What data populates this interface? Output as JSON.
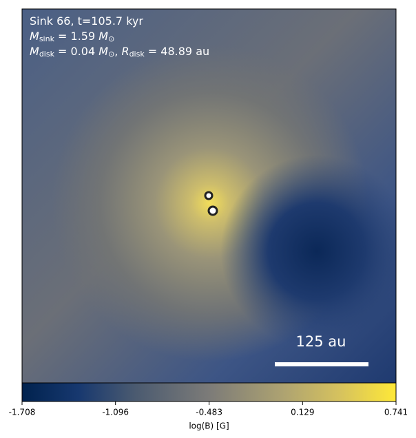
{
  "chart_data": {
    "type": "image",
    "colormap": "cividis",
    "annotation_lines": [
      [
        "Sink 66, t=105.7 kyr"
      ],
      [
        "M",
        "sink",
        " = 1.59 ",
        "M",
        "⊙"
      ],
      [
        "M",
        "disk",
        " = 0.04 ",
        "M",
        "⊙",
        ", ",
        "R",
        "disk",
        " = 48.89 au"
      ]
    ],
    "scale_bar_label": "125 au",
    "colorbar_label": "log(B) [G]",
    "clim": [
      -1.708,
      0.741
    ],
    "cticks": [
      -1.708,
      -1.096,
      -0.483,
      0.129,
      0.741
    ]
  }
}
